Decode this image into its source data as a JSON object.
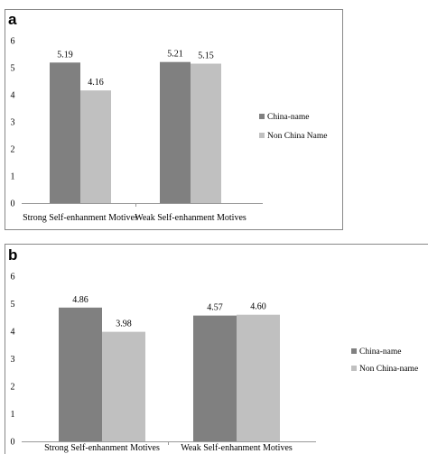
{
  "colors": {
    "china_name": "#808080",
    "non_china_name": "#c0c0c0",
    "frame": "#888888",
    "axis": "#999999"
  },
  "chart_data": [
    {
      "panel": "a",
      "type": "bar",
      "categories": [
        "Strong Self-enhanment Motives",
        "Weak Self-enhanment Motives"
      ],
      "series": [
        {
          "name": "China-name",
          "values": [
            5.19,
            5.21
          ],
          "labels": [
            "5.19",
            "5.21"
          ]
        },
        {
          "name": "Non China Name",
          "values": [
            4.16,
            5.15
          ],
          "labels": [
            "4.16",
            "5.15"
          ]
        }
      ],
      "yticks": [
        "0",
        "1",
        "2",
        "3",
        "4",
        "5",
        "6"
      ],
      "ylim": [
        0,
        6
      ],
      "grid": false,
      "legend_position": "right"
    },
    {
      "panel": "b",
      "type": "bar",
      "categories": [
        "Strong Self-enhanment Motives",
        "Weak Self-enhanment Motives"
      ],
      "series": [
        {
          "name": "China-name",
          "values": [
            4.86,
            4.57
          ],
          "labels": [
            "4.86",
            "4.57"
          ]
        },
        {
          "name": "Non China-name",
          "values": [
            3.98,
            4.6
          ],
          "labels": [
            "3.98",
            "4.60"
          ]
        }
      ],
      "yticks": [
        "0",
        "1",
        "2",
        "3",
        "4",
        "5",
        "6"
      ],
      "ylim": [
        0,
        6
      ],
      "grid": false,
      "legend_position": "right"
    }
  ]
}
